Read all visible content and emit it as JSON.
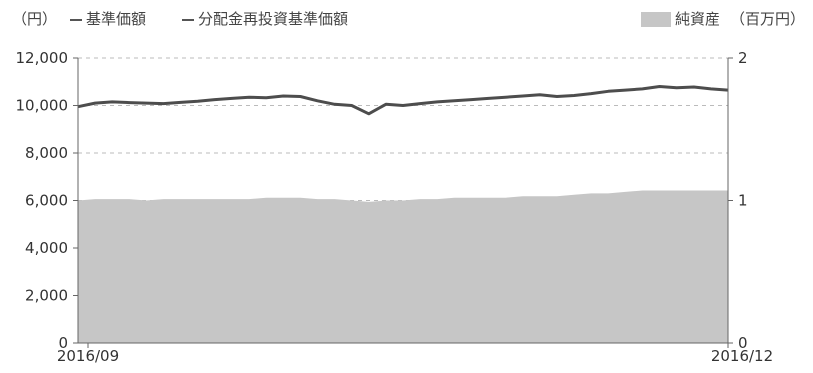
{
  "legend": {
    "left_unit": "（円）",
    "nav_label": "基準価額",
    "reinvested_label": "分配金再投資基準価額",
    "net_assets_label": "純資産",
    "net_assets_unit": "（百万円）"
  },
  "colors": {
    "nav_line": "#4d4d4d",
    "net_assets_area": "#c6c6c6",
    "grid": "#bbbbbb"
  },
  "chart_data": {
    "type": "line",
    "x_start_label": "2016/09",
    "x_end_label": "2016/12",
    "y_left": {
      "ticks": [
        "0",
        "2,000",
        "4,000",
        "6,000",
        "8,000",
        "10,000",
        "12,000"
      ],
      "ylim": [
        0,
        12000
      ]
    },
    "y_right": {
      "ticks": [
        "0",
        "1",
        "2"
      ],
      "ylim": [
        0,
        2
      ]
    },
    "grid": "dashed horizontal",
    "series": [
      {
        "name": "基準価額",
        "type": "line",
        "axis": "left",
        "values": [
          9950,
          10100,
          10150,
          10120,
          10100,
          10080,
          10130,
          10180,
          10250,
          10300,
          10350,
          10330,
          10400,
          10380,
          10200,
          10050,
          10000,
          9650,
          10050,
          10000,
          10080,
          10150,
          10200,
          10250,
          10300,
          10350,
          10400,
          10450,
          10380,
          10420,
          10500,
          10600,
          10650,
          10700,
          10800,
          10750,
          10780,
          10700,
          10650
        ]
      },
      {
        "name": "純資産",
        "type": "area",
        "axis": "right",
        "values": [
          1.0,
          1.01,
          1.01,
          1.01,
          1.0,
          1.01,
          1.01,
          1.01,
          1.01,
          1.01,
          1.01,
          1.02,
          1.02,
          1.02,
          1.01,
          1.01,
          1.0,
          0.99,
          1.0,
          1.0,
          1.01,
          1.01,
          1.02,
          1.02,
          1.02,
          1.02,
          1.03,
          1.03,
          1.03,
          1.04,
          1.05,
          1.05,
          1.06,
          1.07,
          1.07,
          1.07,
          1.07,
          1.07,
          1.07
        ]
      }
    ]
  }
}
